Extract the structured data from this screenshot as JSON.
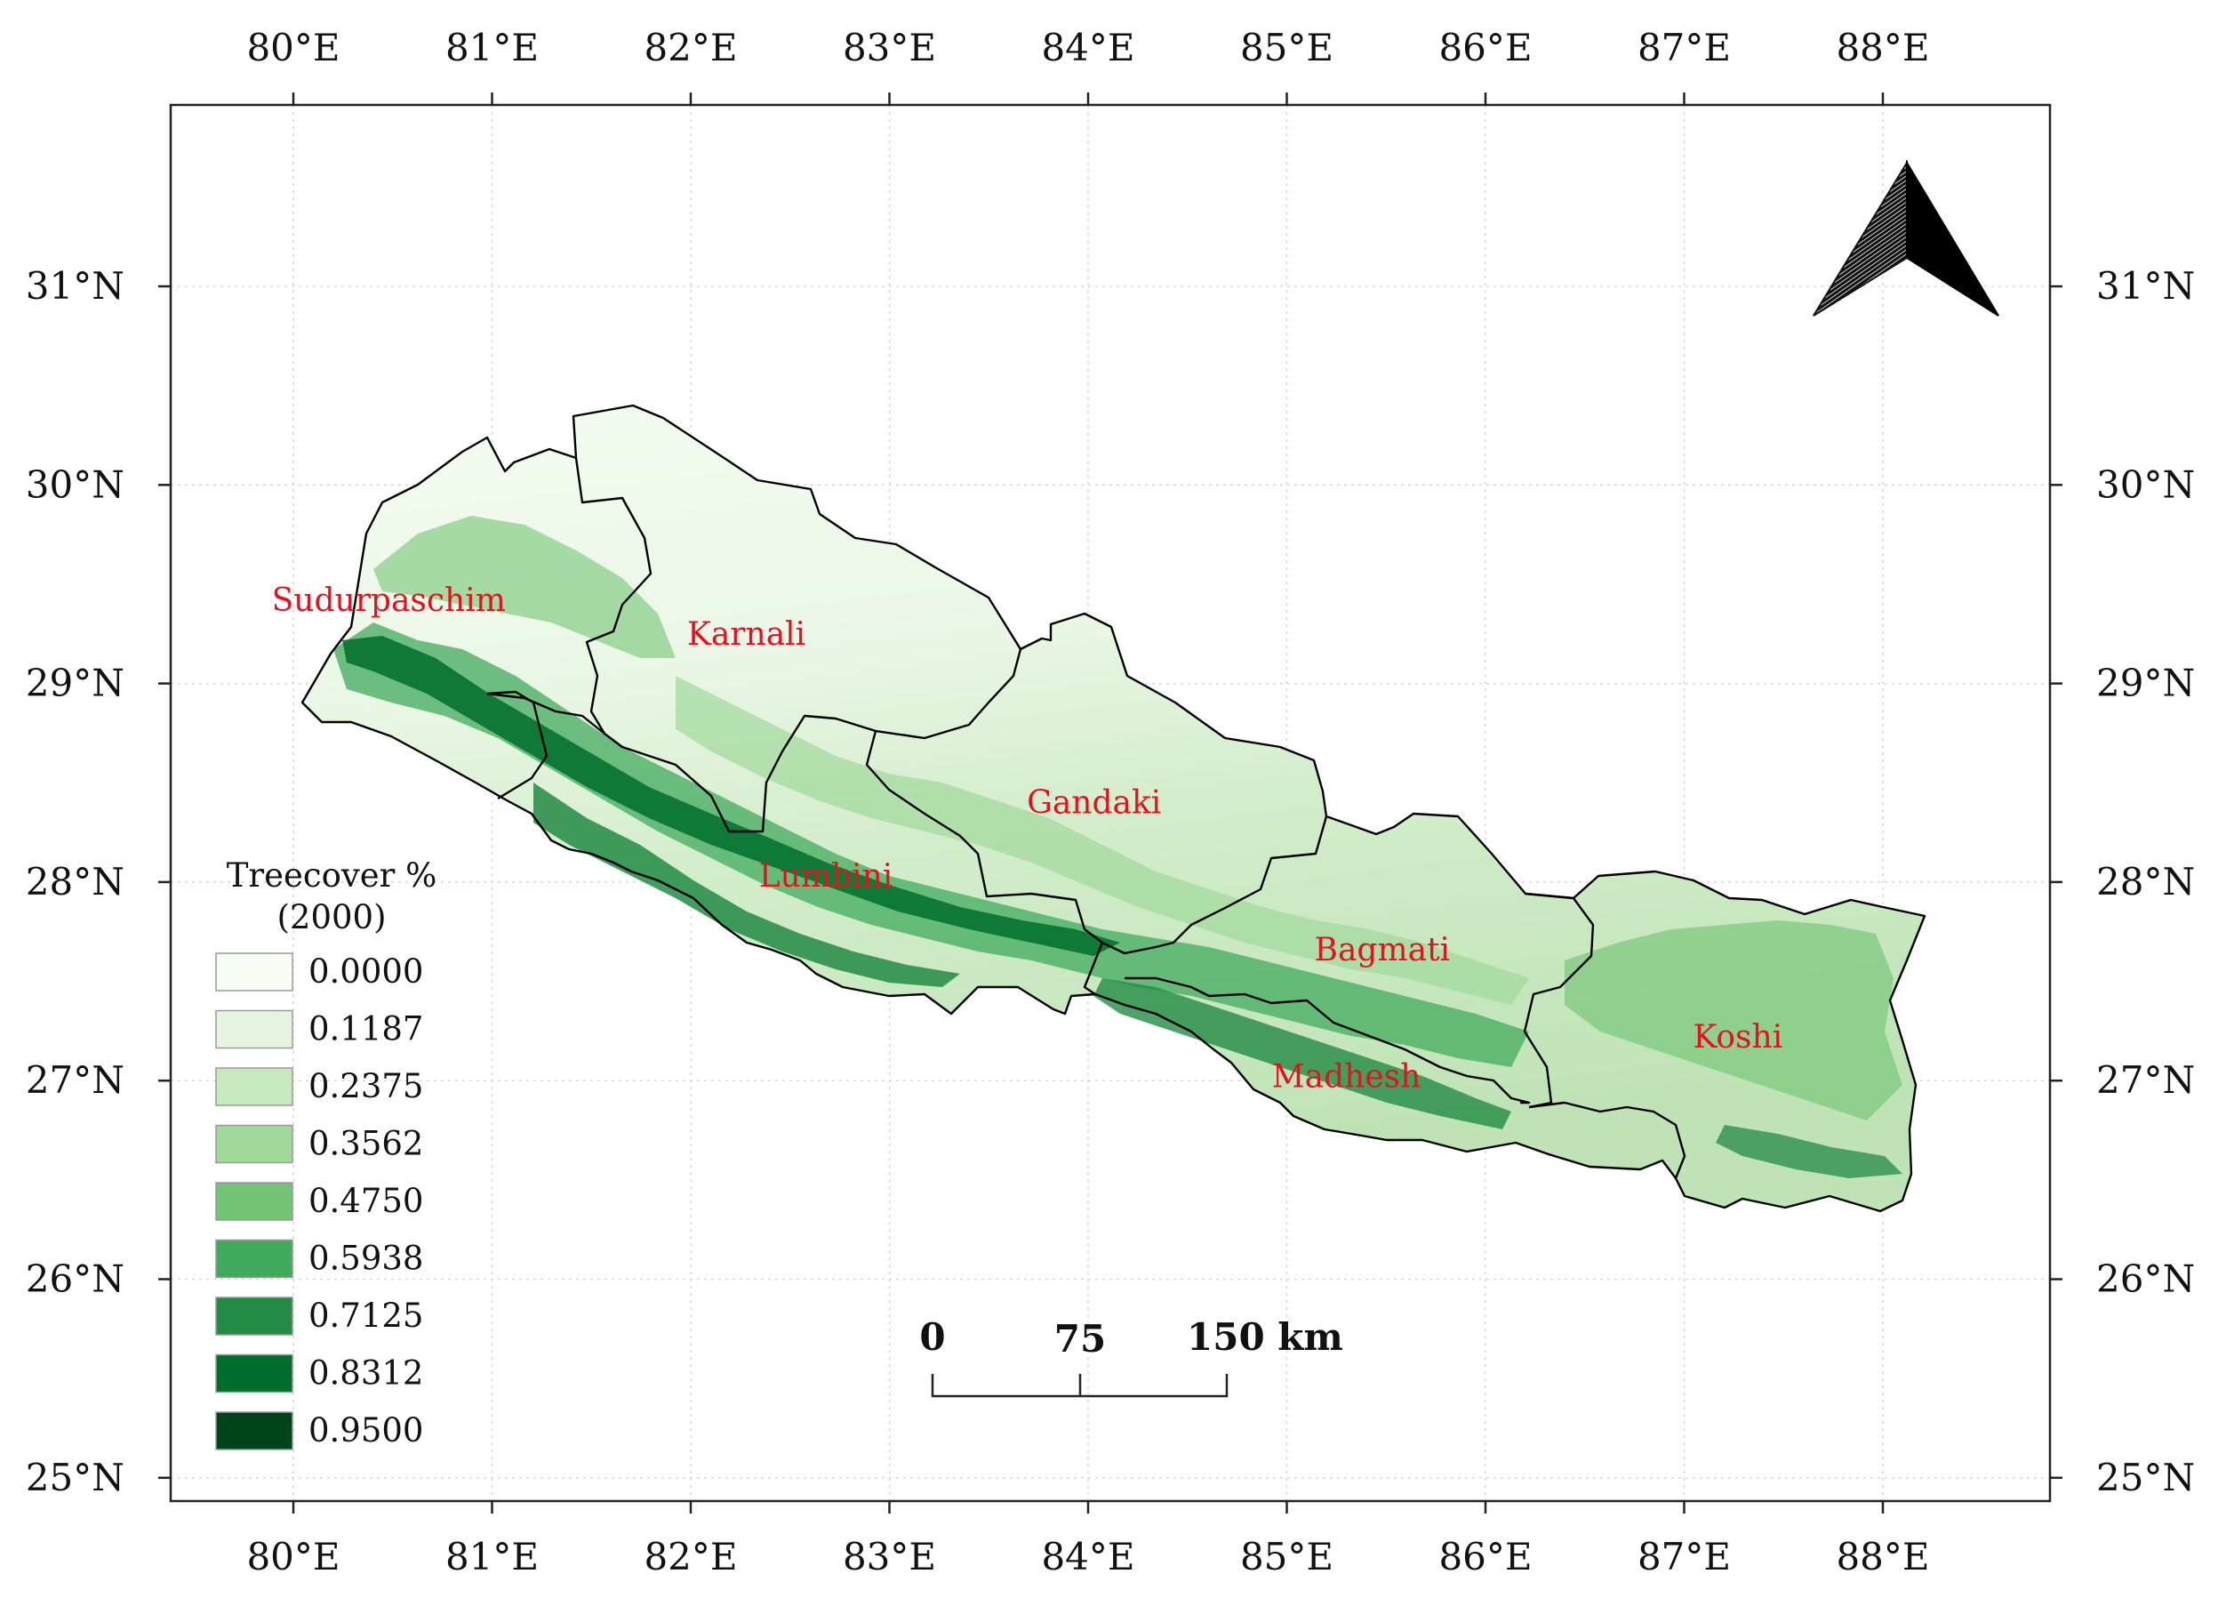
{
  "map": {
    "longitude_ticks": [
      "80°E",
      "81°E",
      "82°E",
      "83°E",
      "84°E",
      "85°E",
      "86°E",
      "87°E",
      "88°E"
    ],
    "latitude_ticks": [
      "31°N",
      "30°N",
      "29°N",
      "28°N",
      "27°N",
      "26°N",
      "25°N"
    ],
    "provinces": [
      {
        "name": "Sudurpaschim",
        "lon": 80.48,
        "lat": 29.42
      },
      {
        "name": "Karnali",
        "lon": 82.28,
        "lat": 29.25
      },
      {
        "name": "Gandaki",
        "lon": 84.03,
        "lat": 28.4
      },
      {
        "name": "Lumbini",
        "lon": 82.68,
        "lat": 28.03
      },
      {
        "name": "Bagmati",
        "lon": 85.48,
        "lat": 27.66
      },
      {
        "name": "Madhesh",
        "lon": 85.3,
        "lat": 27.02
      },
      {
        "name": "Koshi",
        "lon": 87.27,
        "lat": 27.22
      }
    ],
    "north_arrow": "north-arrow-icon",
    "colors": {
      "boundary": "#000000",
      "province_label": "#e8101c",
      "background": "#ffffff"
    }
  },
  "legend": {
    "title_line1": "Treecover %",
    "title_line2": "(2000)",
    "items": [
      {
        "label": "0.0000",
        "color": "#f7fcf5"
      },
      {
        "label": "0.1187",
        "color": "#e5f5e0"
      },
      {
        "label": "0.2375",
        "color": "#c7e9c0"
      },
      {
        "label": "0.3562",
        "color": "#a1d99b"
      },
      {
        "label": "0.4750",
        "color": "#74c476"
      },
      {
        "label": "0.5938",
        "color": "#41ab5d"
      },
      {
        "label": "0.7125",
        "color": "#238b45"
      },
      {
        "label": "0.8312",
        "color": "#006d2c"
      },
      {
        "label": "0.9500",
        "color": "#00441b"
      }
    ]
  },
  "scale_bar": {
    "labels": [
      "0",
      "75",
      "150 km"
    ]
  }
}
